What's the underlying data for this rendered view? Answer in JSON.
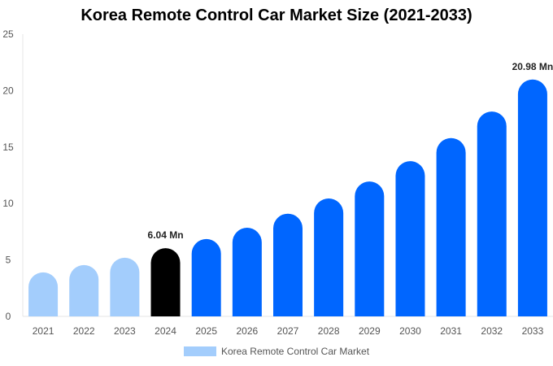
{
  "chart_data": {
    "type": "bar",
    "title": "Korea Remote Control Car Market Size (2021-2033)",
    "categories": [
      "2021",
      "2022",
      "2023",
      "2024",
      "2025",
      "2026",
      "2027",
      "2028",
      "2029",
      "2030",
      "2031",
      "2032",
      "2033"
    ],
    "series": [
      {
        "name": "Korea Remote Control Car Market",
        "values": [
          3.9,
          4.55,
          5.2,
          6.04,
          6.85,
          7.85,
          9.1,
          10.45,
          11.95,
          13.75,
          15.8,
          18.15,
          20.98
        ]
      }
    ],
    "data_labels": {
      "3": "6.04 Mn",
      "12": "20.98 Mn"
    },
    "ylim": [
      0,
      25
    ],
    "yticks": [
      0,
      5,
      10,
      15,
      20,
      25
    ],
    "grid": false,
    "legend_position": "bottom",
    "colors": {
      "historical": "#a3cdfc",
      "base_year": "#000000",
      "forecast": "#0066ff"
    }
  }
}
